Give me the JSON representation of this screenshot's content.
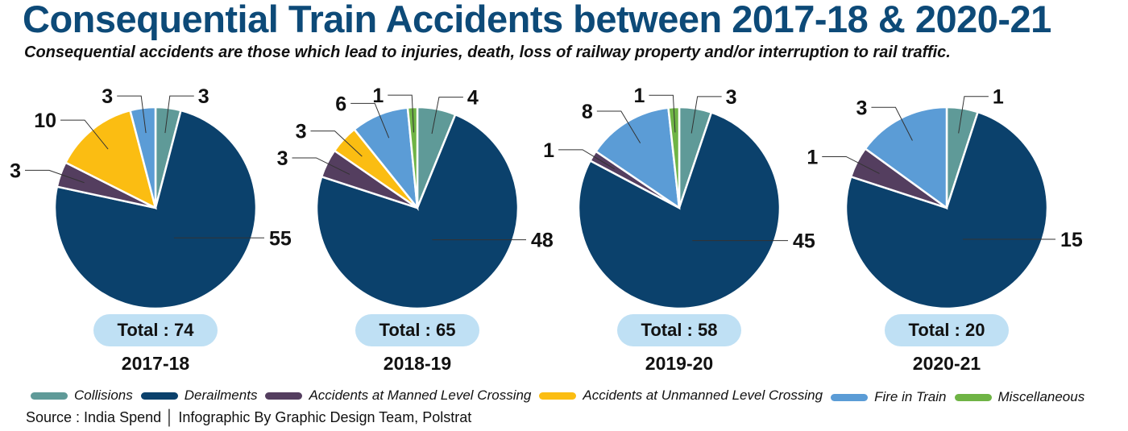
{
  "chart_data": {
    "type": "pie",
    "title": "Consequential Train Accidents between 2017-18 & 2020-21",
    "subtitle": "Consequential accidents are those which lead to injuries, death, loss of railway property and/or interruption to rail traffic.",
    "categories": [
      "Collisions",
      "Derailments",
      "Accidents at Manned Level Crossing",
      "Accidents at Unmanned Level Crossing",
      "Fire in Train",
      "Miscellaneous"
    ],
    "colors": [
      "#5f9a98",
      "#0b416c",
      "#543e5f",
      "#fbbd12",
      "#5b9cd6",
      "#6fb445"
    ],
    "pies": [
      {
        "year": "2017-18",
        "total_label": "Total : 74",
        "values": [
          3,
          55,
          3,
          10,
          3,
          0
        ]
      },
      {
        "year": "2018-19",
        "total_label": "Total : 65",
        "values": [
          4,
          48,
          3,
          3,
          6,
          1
        ]
      },
      {
        "year": "2019-20",
        "total_label": "Total : 58",
        "values": [
          3,
          45,
          1,
          0,
          8,
          1
        ]
      },
      {
        "year": "2020-21",
        "total_label": "Total : 20",
        "values": [
          1,
          15,
          1,
          0,
          3,
          0
        ]
      }
    ],
    "legend_placement": "bottom"
  },
  "source": "Source : India Spend │ Infographic By Graphic Design Team, Polstrat"
}
